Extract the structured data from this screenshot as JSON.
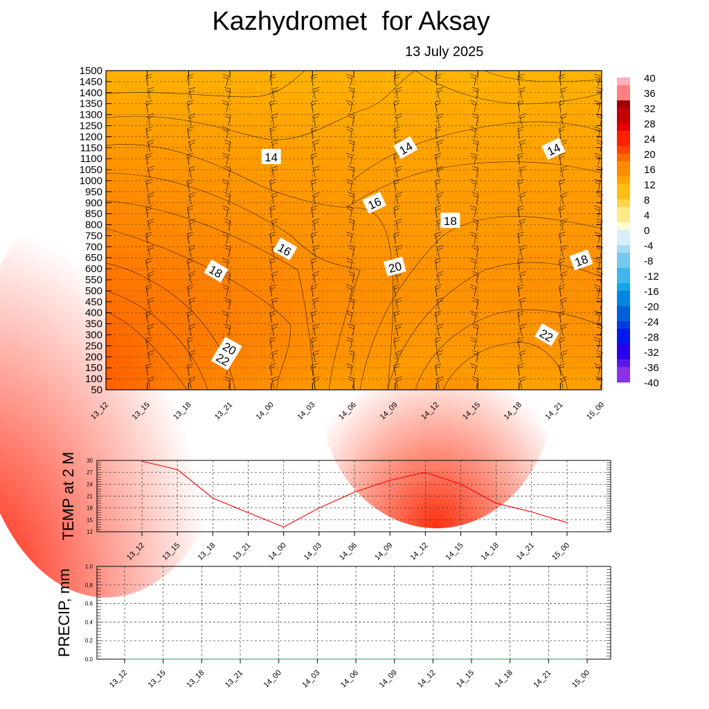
{
  "header": {
    "title": "Kazhydromet  for Aksay",
    "subtitle": "13 July 2025"
  },
  "colors": {
    "warm_scale": [
      "#fffbd0",
      "#ffe98a",
      "#ffd34a",
      "#ffbe10",
      "#ffa500",
      "#ff8c00",
      "#ff6a00",
      "#ff4400",
      "#ff2000",
      "#e60000",
      "#c40000",
      "#a00000",
      "#ff8080",
      "#ffb0b8"
    ],
    "cold_scale": [
      "#d6eef8",
      "#a9dcf3",
      "#74c9ef",
      "#3fb6ec",
      "#14a4e8",
      "#0086e0",
      "#0060d8",
      "#003ae0",
      "#0018f0",
      "#2800f0",
      "#5a18e8",
      "#8a30e8"
    ],
    "temp_line": "#ff0000",
    "precip_line": "#2e8b57"
  },
  "chart_data": [
    {
      "type": "heatmap",
      "title": "",
      "xlabel": "",
      "ylabel": "",
      "x_categories": [
        "13_12",
        "13_15",
        "13_18",
        "13_21",
        "14_00",
        "14_03",
        "14_06",
        "14_09",
        "14_12",
        "14_15",
        "14_18",
        "14_21",
        "15_00"
      ],
      "y_ticks": [
        50,
        100,
        150,
        200,
        250,
        300,
        350,
        400,
        450,
        500,
        550,
        600,
        650,
        700,
        750,
        800,
        850,
        900,
        950,
        1000,
        1050,
        1100,
        1150,
        1200,
        1250,
        1300,
        1350,
        1400,
        1450,
        1500
      ],
      "ylim": [
        50,
        1500
      ],
      "grid": true,
      "colorbar": {
        "labels": [
          40,
          36,
          32,
          28,
          24,
          20,
          16,
          12,
          8,
          4,
          0,
          -4,
          -8,
          -12,
          -16,
          -20,
          -24,
          -28,
          -32,
          -36,
          -40
        ],
        "range": [
          -40,
          40
        ]
      },
      "contour_labels": [
        {
          "text": "14",
          "x": "14_00",
          "y": 1110
        },
        {
          "text": "14",
          "x": "14_09",
          "y": 1150
        },
        {
          "text": "14",
          "x": "14_21",
          "y": 1145
        },
        {
          "text": "16",
          "x": "14_00",
          "y": 690
        },
        {
          "text": "16",
          "x": "14_09",
          "y": 900
        },
        {
          "text": "18",
          "x": "13_21",
          "y": 590
        },
        {
          "text": "18",
          "x": "14_12",
          "y": 820
        },
        {
          "text": "18",
          "x": "14_21",
          "y": 640
        },
        {
          "text": "20",
          "x": "13_21",
          "y": 240
        },
        {
          "text": "20",
          "x": "14_12",
          "y": 610
        },
        {
          "text": "22",
          "x": "13_18",
          "y": 190
        },
        {
          "text": "22",
          "x": "14_18",
          "y": 300
        }
      ]
    },
    {
      "type": "line",
      "ylabel": "TEMP at 2 M",
      "x": [
        "13_12",
        "13_15",
        "13_18",
        "13_21",
        "14_00",
        "14_03",
        "14_06",
        "14_09",
        "14_12",
        "14_15",
        "14_18",
        "14_21",
        "15_00"
      ],
      "y_ticks": [
        12,
        15,
        18,
        21,
        24,
        27,
        30
      ],
      "ylim": [
        12,
        30
      ],
      "grid": true,
      "series": [
        {
          "values": [
            29.8,
            27.7,
            20.5,
            16.8,
            13.2,
            18.0,
            22.0,
            25.0,
            27.0,
            24.0,
            19.2,
            17.0,
            14.3
          ]
        }
      ]
    },
    {
      "type": "line",
      "ylabel": "PRECIP, mm",
      "x": [
        "13_12",
        "13_15",
        "13_18",
        "13_21",
        "14_00",
        "14_03",
        "14_06",
        "14_09",
        "14_12",
        "14_15",
        "14_18",
        "14_21",
        "15_00"
      ],
      "y_ticks": [
        "0.0",
        "0.2",
        "0.4",
        "0.6",
        "0.8",
        "1.0"
      ],
      "ylim": [
        0,
        1
      ],
      "grid": true,
      "series": [
        {
          "values": [
            0,
            0,
            0,
            0,
            0,
            0,
            0,
            0,
            0,
            0,
            0,
            0,
            0
          ]
        }
      ]
    }
  ]
}
